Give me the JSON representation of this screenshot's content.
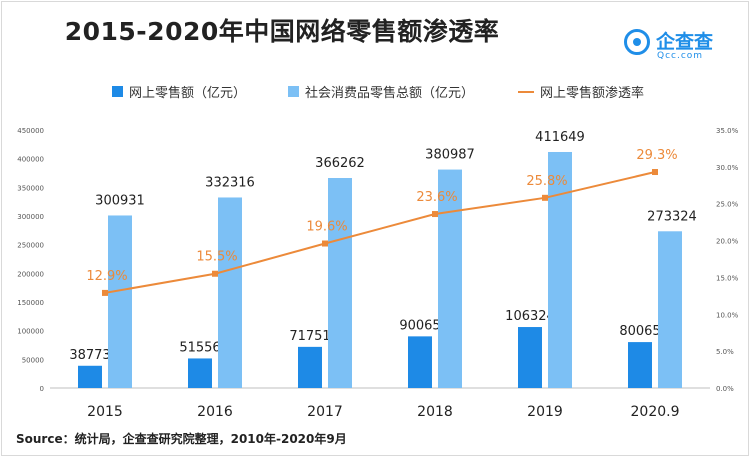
{
  "title": "2015-2020年中国网络零售额渗透率",
  "logo": {
    "name": "企查查",
    "sub": "Qcc.com"
  },
  "source": "Source：统计局，企查查研究院整理，2010年-2020年9月",
  "colors": {
    "online": "#1e8ae6",
    "total": "#7cc0f5",
    "rate": "#ec8a3a",
    "rateLabel": "#ec8a3a"
  },
  "chart_data": {
    "type": "bar",
    "categories": [
      "2015",
      "2016",
      "2017",
      "2018",
      "2019",
      "2020.9"
    ],
    "series": [
      {
        "name": "网上零售额（亿元）",
        "type": "bar",
        "axis": "left",
        "values": [
          38773,
          51556,
          71751,
          90065,
          106324,
          80065
        ],
        "labels": [
          "38773",
          "51556",
          "71751",
          "90065",
          "106324",
          "80065"
        ]
      },
      {
        "name": "社会消费品零售总额（亿元）",
        "type": "bar",
        "axis": "left",
        "values": [
          300931,
          332316,
          366262,
          380987,
          411649,
          273324
        ],
        "labels": [
          "300931",
          "332316",
          "366262",
          "380987",
          "411649",
          "273324"
        ]
      },
      {
        "name": "网上零售额渗透率",
        "type": "line",
        "axis": "right",
        "values": [
          12.9,
          15.5,
          19.6,
          23.6,
          25.8,
          29.3
        ],
        "labels": [
          "12.9%",
          "15.5%",
          "19.6%",
          "23.6%",
          "25.8%",
          "29.3%"
        ]
      }
    ],
    "left_axis": {
      "ylim": [
        0,
        450000
      ],
      "ticks": [
        "0",
        "50000",
        "100000",
        "150000",
        "200000",
        "250000",
        "300000",
        "350000",
        "400000",
        "450000"
      ]
    },
    "right_axis": {
      "ylim": [
        0,
        35
      ],
      "ticks": [
        "0.0%",
        "5.0%",
        "10.0%",
        "15.0%",
        "20.0%",
        "25.0%",
        "30.0%",
        "35.0%"
      ]
    },
    "grid": false,
    "legend": "top"
  }
}
